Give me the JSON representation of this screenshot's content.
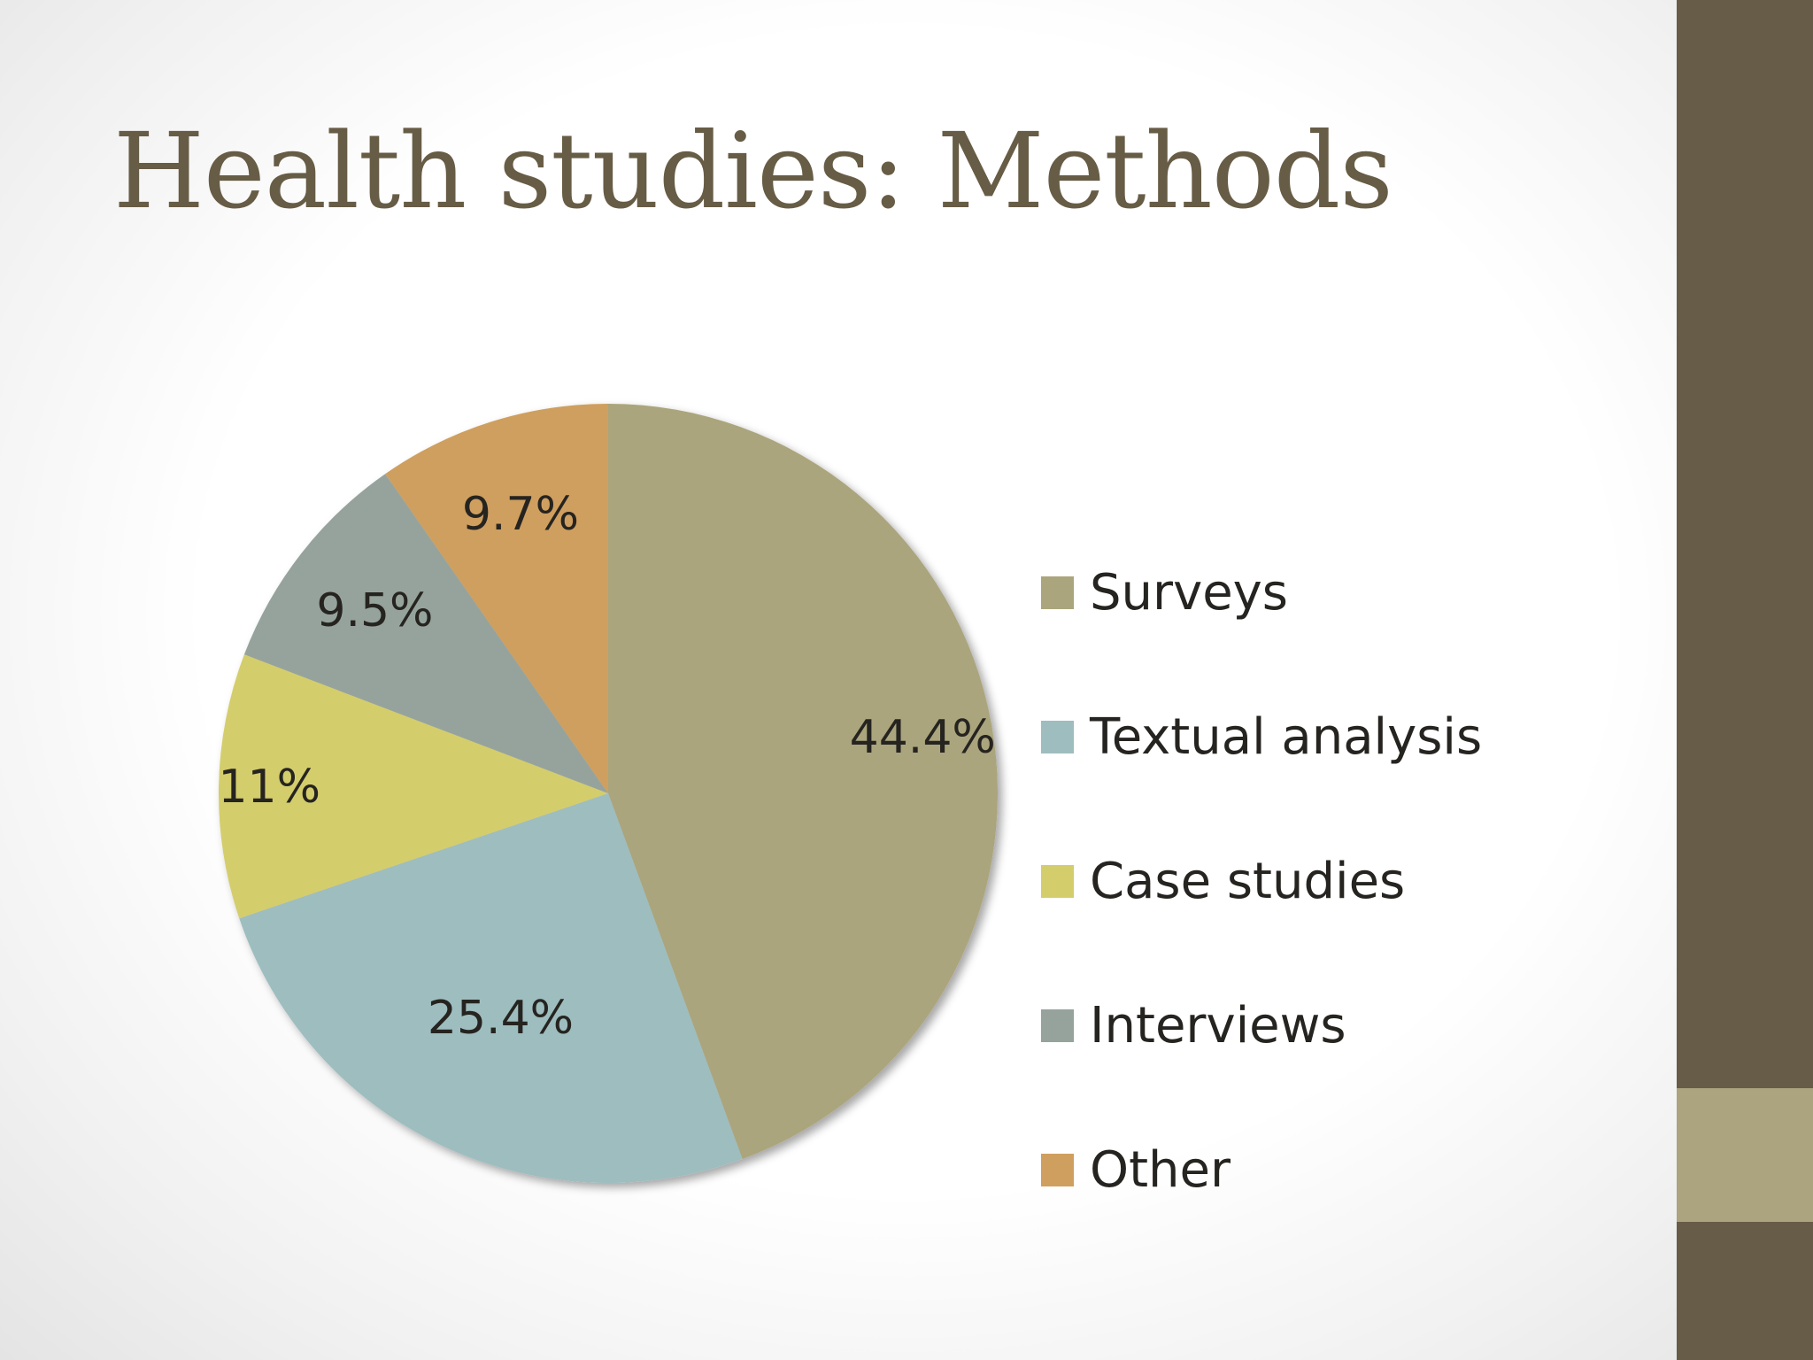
{
  "slide": {
    "title": "Health studies: Methods"
  },
  "chart_data": {
    "type": "pie",
    "categories": [
      "Surveys",
      "Textual analysis",
      "Case studies",
      "Interviews",
      "Other"
    ],
    "values": [
      44.4,
      25.4,
      11,
      9.5,
      9.7
    ],
    "value_labels": [
      "44.4%",
      "25.4%",
      "11%",
      "9.5%",
      "9.7%"
    ],
    "colors": [
      "#aba57d",
      "#9ebdbf",
      "#d4cd6c",
      "#96a39d",
      "#cf9f5f"
    ],
    "start_angle": "12 o'clock",
    "direction": "clockwise",
    "legend": "right",
    "legend_entries": [
      "Surveys",
      "Textual analysis",
      "Case studies",
      "Interviews",
      "Other"
    ]
  }
}
